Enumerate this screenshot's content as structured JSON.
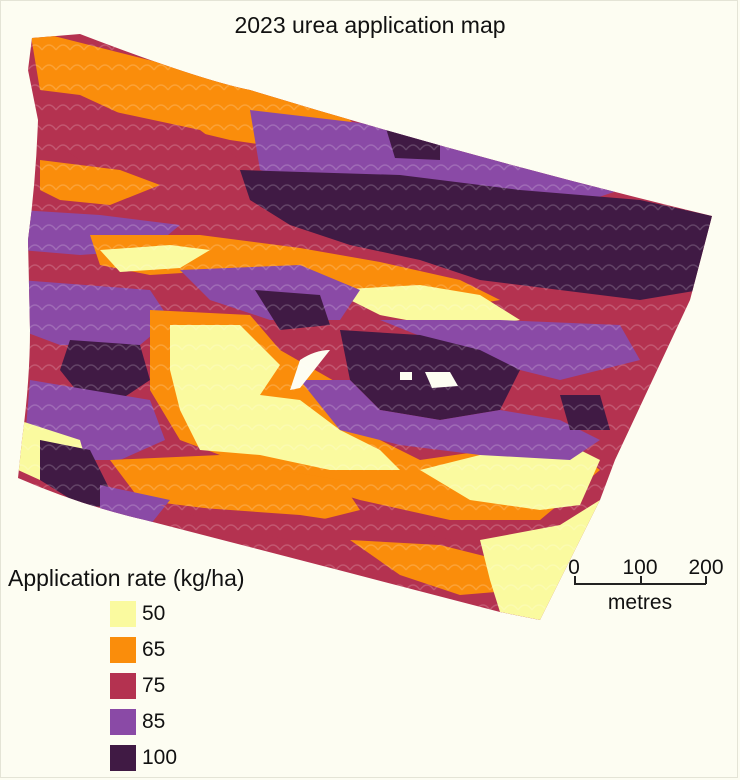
{
  "title": "2023 urea application map",
  "legend": {
    "title": "Application rate (kg/ha)",
    "items": [
      {
        "label": "50",
        "color": "#fafa9f"
      },
      {
        "label": "65",
        "color": "#fa8d0b"
      },
      {
        "label": "75",
        "color": "#b43250"
      },
      {
        "label": "85",
        "color": "#8a4aa6"
      },
      {
        "label": "100",
        "color": "#401a44"
      }
    ]
  },
  "scalebar": {
    "ticks": [
      "0",
      "100",
      "200"
    ],
    "unit": "metres"
  },
  "colors": {
    "background": "#fdfdf2",
    "rate_50": "#fafa9f",
    "rate_65": "#fa8d0b",
    "rate_75": "#b43250",
    "rate_85": "#8a4aa6",
    "rate_100": "#401a44"
  }
}
